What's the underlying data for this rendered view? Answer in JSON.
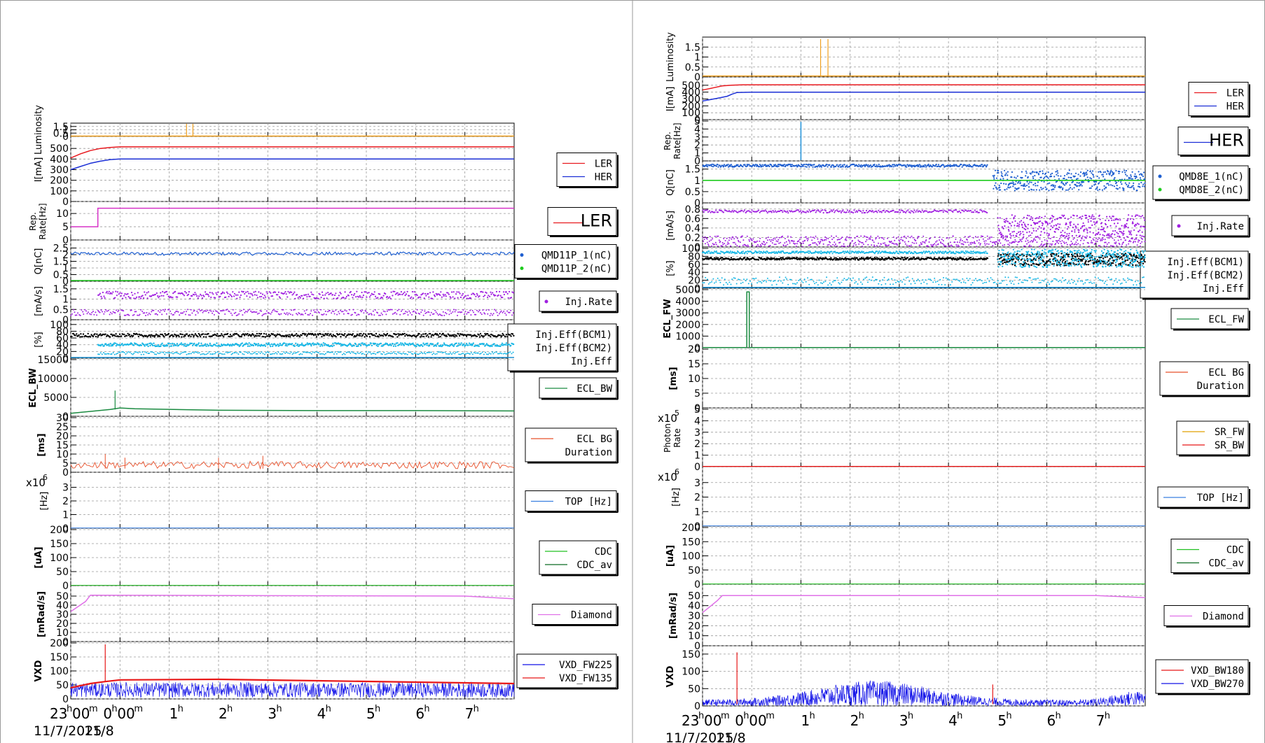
{
  "colors": {
    "LER": "#e8191f",
    "HER": "#1b2fd6",
    "luminosity": "#f0a020",
    "rep_rate_left": "#d633c8",
    "rep_rate_right": "#1e90d8",
    "q1": "#1f5fd0",
    "q2": "#1ecb1e",
    "inj_rate": "#a020e0",
    "eff_bcm1": "#000000",
    "eff_bcm2": "#17b7e6",
    "eff": "#1a8fd0",
    "ecl_fw": "#1a8a40",
    "ecl_bw": "#1a8a40",
    "ecl_bg": "#e8502a",
    "sr_fw": "#e0a000",
    "sr_bw": "#e81818",
    "top": "#3a7fe0",
    "cdc": "#20c020",
    "cdc_av": "#0a6a20",
    "diamond": "#e070e8",
    "vxd_red": "#e81818",
    "vxd_blue": "#1010e8"
  },
  "time_axis": {
    "ticks": [
      "23h00m",
      "0h00m",
      "1h",
      "2h",
      "3h",
      "4h",
      "5h",
      "6h",
      "7h"
    ],
    "date_left": "11/7/2025",
    "date_right": "11/8",
    "start_hour": -1,
    "end_hour": 8
  },
  "chart_data": [
    {
      "type": "line",
      "panel": "left",
      "rows": [
        {
          "ylabel": "Luminosity",
          "ticks": [
            "0",
            "0.5",
            "1",
            "1.5"
          ],
          "ylim": [
            0,
            2
          ],
          "legend": []
        },
        {
          "ylabel": "I[mA]",
          "ticks": [
            "0",
            "100",
            "200",
            "300",
            "400",
            "500"
          ],
          "ylim": [
            0,
            600
          ],
          "legend": [
            "LER",
            "HER"
          ]
        },
        {
          "ylabel": "Rep. Rate[Hz]",
          "ticks": [
            "0",
            "5",
            "10"
          ],
          "ylim": [
            0,
            14
          ],
          "legend": [
            "LER"
          ]
        },
        {
          "ylabel": "Q[nC]",
          "ticks": [
            "0",
            "0.5",
            "1",
            "1.5",
            "2",
            "2.5"
          ],
          "ylim": [
            0,
            3
          ],
          "legend": [
            "QMD11P_1(nC)",
            "QMD11P_2(nC)"
          ]
        },
        {
          "ylabel": "[mA/s]",
          "ticks": [
            "0",
            "0.5",
            "1",
            "1.5"
          ],
          "ylim": [
            0,
            1.8
          ],
          "legend": [
            "Inj.Rate"
          ]
        },
        {
          "ylabel": "[%]",
          "ticks": [
            "0",
            "20",
            "40",
            "60",
            "80",
            "100"
          ],
          "ylim": [
            0,
            110
          ],
          "legend": [
            "Inj.Eff(BCM1)",
            "Inj.Eff(BCM2)",
            "Inj.Eff"
          ]
        },
        {
          "ylabel": "ECL_BW",
          "ticks": [
            "0",
            "5000",
            "10000",
            "15000"
          ],
          "ylim": [
            0,
            15000
          ],
          "legend": [
            "ECL_BW"
          ]
        },
        {
          "ylabel": "[ms]",
          "ticks": [
            "0",
            "5",
            "10",
            "15",
            "20",
            "25",
            "30"
          ],
          "ylim": [
            0,
            30
          ],
          "legend": [
            "ECL BG",
            "Duration"
          ]
        },
        {
          "ylabel": "[Hz]",
          "ticks": [
            "0",
            "1",
            "2",
            "3"
          ],
          "ylim": [
            0,
            4
          ],
          "legend": [
            "TOP [Hz]"
          ],
          "multiplier": "x10",
          "exp": "6"
        },
        {
          "ylabel": "[uA]",
          "ticks": [
            "0",
            "50",
            "100",
            "150",
            "200"
          ],
          "ylim": [
            0,
            200
          ],
          "legend": [
            "CDC",
            "CDC_av"
          ]
        },
        {
          "ylabel": "[mRad/s]",
          "ticks": [
            "0",
            "10",
            "20",
            "30",
            "40",
            "50"
          ],
          "ylim": [
            0,
            60
          ],
          "legend": [
            "Diamond"
          ]
        },
        {
          "ylabel": "VXD",
          "ticks": [
            "0",
            "50",
            "100",
            "150",
            "200"
          ],
          "ylim": [
            0,
            200
          ],
          "legend": [
            "VXD_FW225",
            "VXD_FW135"
          ]
        }
      ],
      "series": [
        {
          "name": "LER",
          "x": [
            -1,
            -0.8,
            -0.6,
            -0.4,
            -0.2,
            0,
            2,
            4,
            6,
            8
          ],
          "values": [
            410,
            450,
            480,
            500,
            510,
            515,
            515,
            515,
            515,
            515
          ]
        },
        {
          "name": "HER",
          "x": [
            -1,
            -0.8,
            -0.6,
            -0.4,
            -0.2,
            0,
            2,
            4,
            6,
            8
          ],
          "values": [
            300,
            330,
            360,
            380,
            395,
            400,
            400,
            400,
            400,
            400
          ]
        },
        {
          "name": "LER",
          "x": [
            -1,
            -0.45,
            -0.45,
            8
          ],
          "values": [
            5,
            5,
            12,
            12
          ]
        },
        {
          "name": "ECL_BW",
          "x": [
            -1,
            -0.2,
            0,
            0.3,
            2,
            4,
            6,
            8
          ],
          "values": [
            800,
            1800,
            2200,
            2000,
            1600,
            1500,
            1500,
            1400
          ]
        },
        {
          "name": "Diamond",
          "x": [
            -1,
            -0.7,
            -0.6,
            7,
            8
          ],
          "values": [
            33,
            44,
            51,
            50,
            47
          ]
        }
      ]
    },
    {
      "type": "line",
      "panel": "right",
      "rows": [
        {
          "ylabel": "Luminosity",
          "ticks": [
            "0",
            "0.5",
            "1",
            "1.5"
          ],
          "ylim": [
            0,
            2
          ],
          "legend": []
        },
        {
          "ylabel": "I[mA]",
          "ticks": [
            "0",
            "100",
            "200",
            "300",
            "400",
            "500"
          ],
          "ylim": [
            0,
            600
          ],
          "legend": [
            "LER",
            "HER"
          ]
        },
        {
          "ylabel": "Rep. Rate[Hz]",
          "ticks": [
            "0",
            "1",
            "2",
            "3",
            "4",
            "5"
          ],
          "ylim": [
            0,
            5
          ],
          "legend": [
            "HER"
          ]
        },
        {
          "ylabel": "Q[nC]",
          "ticks": [
            "0",
            "0.5",
            "1",
            "1.5"
          ],
          "ylim": [
            0,
            1.8
          ],
          "legend": [
            "QMD8E_1(nC)",
            "QMD8E_2(nC)"
          ]
        },
        {
          "ylabel": "[mA/s]",
          "ticks": [
            "0",
            "0.2",
            "0.4",
            "0.6",
            "0.8"
          ],
          "ylim": [
            0,
            0.9
          ],
          "legend": [
            "Inj.Rate"
          ]
        },
        {
          "ylabel": "[%]",
          "ticks": [
            "0",
            "20",
            "40",
            "60",
            "80",
            "100"
          ],
          "ylim": [
            0,
            100
          ],
          "legend": [
            "Inj.Eff(BCM1)",
            "Inj.Eff(BCM2)",
            "Inj.Eff"
          ]
        },
        {
          "ylabel": "ECL_FW",
          "ticks": [
            "0",
            "1000",
            "2000",
            "3000",
            "4000",
            "5000"
          ],
          "ylim": [
            0,
            5000
          ],
          "legend": [
            "ECL_FW"
          ]
        },
        {
          "ylabel": "[ms]",
          "ticks": [
            "0",
            "5",
            "10",
            "15",
            "20"
          ],
          "ylim": [
            0,
            20
          ],
          "legend": [
            "ECL BG",
            "Duration"
          ]
        },
        {
          "ylabel": "Photon Rate",
          "ticks": [
            "0",
            "1",
            "2",
            "3",
            "4",
            "5"
          ],
          "ylim": [
            0,
            5
          ],
          "legend": [
            "SR_FW",
            "SR_BW"
          ],
          "multiplier": "x10",
          "exp": "5"
        },
        {
          "ylabel": "[Hz]",
          "ticks": [
            "0",
            "1",
            "2",
            "3"
          ],
          "ylim": [
            0,
            4
          ],
          "legend": [
            "TOP [Hz]"
          ],
          "multiplier": "x10",
          "exp": "6"
        },
        {
          "ylabel": "[uA]",
          "ticks": [
            "0",
            "50",
            "100",
            "150",
            "200"
          ],
          "ylim": [
            0,
            200
          ],
          "legend": [
            "CDC",
            "CDC_av"
          ]
        },
        {
          "ylabel": "[mRad/s]",
          "ticks": [
            "0",
            "10",
            "20",
            "30",
            "40",
            "50"
          ],
          "ylim": [
            0,
            60
          ],
          "legend": [
            "Diamond"
          ]
        },
        {
          "ylabel": "VXD",
          "ticks": [
            "0",
            "50",
            "100",
            "150"
          ],
          "ylim": [
            0,
            170
          ],
          "legend": [
            "VXD_BW180",
            "VXD_BW270"
          ]
        }
      ],
      "series": [
        {
          "name": "LER",
          "x": [
            -1,
            -0.8,
            -0.6,
            -0.4,
            -0.2,
            0,
            8
          ],
          "values": [
            430,
            460,
            490,
            500,
            505,
            505,
            505
          ]
        },
        {
          "name": "HER",
          "x": [
            -1,
            -0.7,
            -0.5,
            -0.4,
            -0.3,
            0,
            8
          ],
          "values": [
            270,
            310,
            340,
            370,
            395,
            400,
            400
          ]
        },
        {
          "name": "ECL_FW",
          "x": [
            -1,
            -0.1,
            -0.1,
            -0.05,
            -0.05,
            8
          ],
          "values": [
            20,
            20,
            4800,
            4800,
            20,
            20
          ]
        },
        {
          "name": "Diamond",
          "x": [
            -1,
            -0.7,
            -0.6,
            7,
            8
          ],
          "values": [
            33,
            45,
            50,
            50,
            48
          ]
        }
      ]
    }
  ]
}
